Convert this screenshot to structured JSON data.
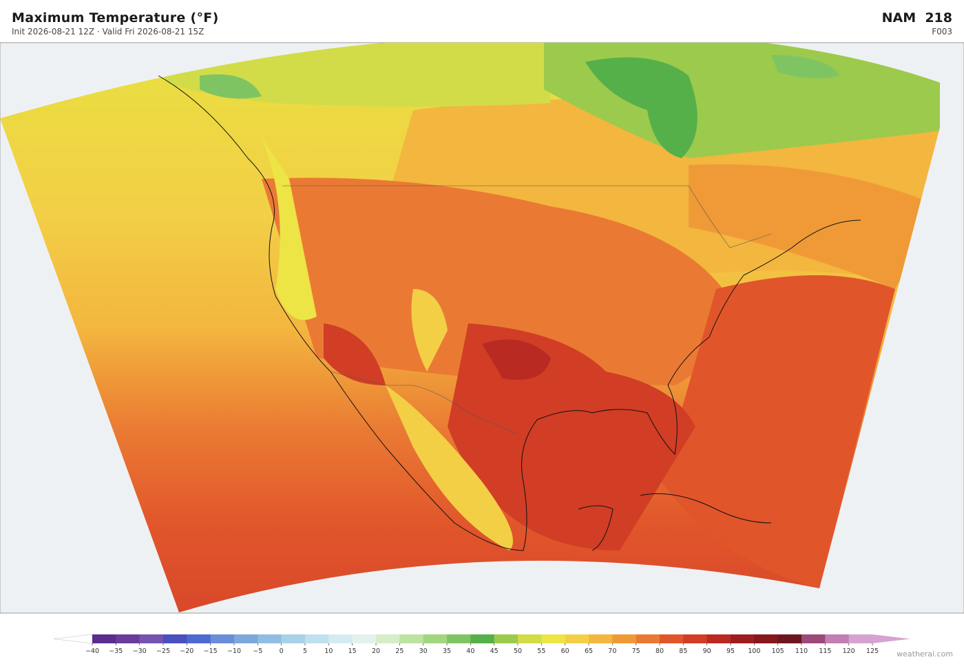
{
  "header": {
    "title": "Maximum Temperature  (°F)",
    "subtitle": "Init 2026-08-21 12Z  ·  Valid Fri 2026-08-21 15Z",
    "model": "NAM  218",
    "forecast_hour": "F003"
  },
  "colorbar": {
    "ticks": [
      {
        "value": -40,
        "label": "−40"
      },
      {
        "value": -35,
        "label": "−35"
      },
      {
        "value": -30,
        "label": "−30"
      },
      {
        "value": -25,
        "label": "−25"
      },
      {
        "value": -20,
        "label": "−20"
      },
      {
        "value": -15,
        "label": "−15"
      },
      {
        "value": -10,
        "label": "−10"
      },
      {
        "value": -5,
        "label": "−5"
      },
      0,
      5,
      10,
      15,
      20,
      25,
      30,
      35,
      40,
      45,
      50,
      55,
      60,
      65,
      70,
      75,
      80,
      85,
      90,
      95,
      100,
      105,
      110,
      115,
      120,
      125
    ],
    "colors": [
      "#5b2d8e",
      "#6a3d9a",
      "#7553b0",
      "#4b4fc0",
      "#4e6ad0",
      "#6a8fd8",
      "#7ea8dc",
      "#90bee0",
      "#a9d2e8",
      "#c1e0ee",
      "#d4ebf1",
      "#e4f2ee",
      "#d5edc8",
      "#bde3a0",
      "#a2d67f",
      "#7fc462",
      "#56b04a",
      "#9cca4c",
      "#d1dc48",
      "#ede445",
      "#f3cf46",
      "#f3b63f",
      "#ef9a37",
      "#ea7a33",
      "#e1552b",
      "#d13d25",
      "#b82a22",
      "#9e1d1f",
      "#85171d",
      "#6e161f",
      "#9c4a7a",
      "#c17fb3",
      "#d6a3d0"
    ],
    "under_color": "#ffffff",
    "over_color": "#d6a3d0"
  },
  "footer": {
    "brand": "weatherai.com"
  }
}
